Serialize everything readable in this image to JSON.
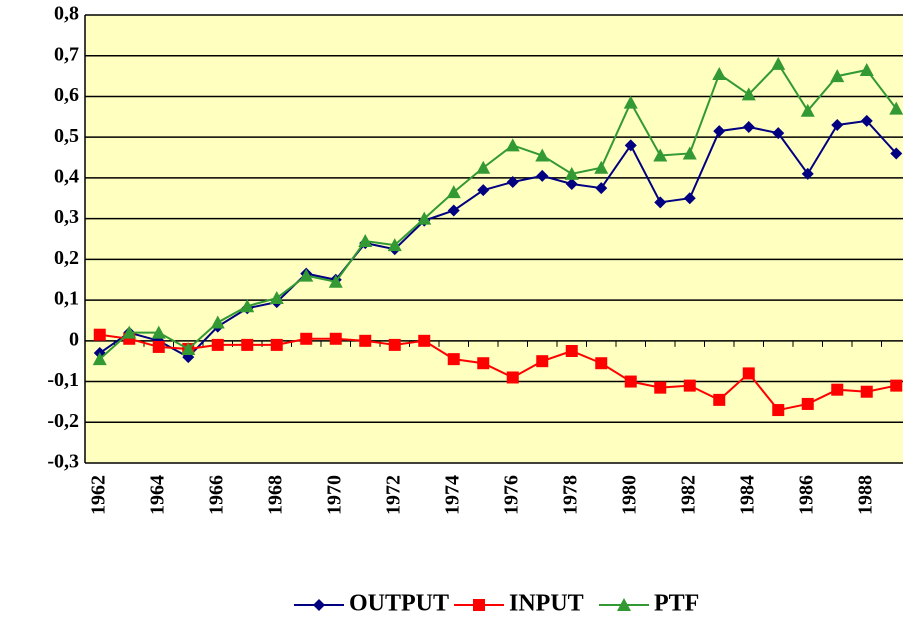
{
  "chart_data": {
    "type": "line",
    "categories": [
      "1962",
      null,
      "1964",
      null,
      "1966",
      null,
      "1968",
      null,
      "1970",
      null,
      "1972",
      null,
      "1974",
      null,
      "1976",
      null,
      "1978",
      null,
      "1980",
      null,
      "1982",
      null,
      "1984",
      null,
      "1986",
      null,
      "1988",
      null
    ],
    "series": [
      {
        "name": "OUTPUT",
        "color": "#000080",
        "marker": "diamond",
        "values": [
          -0.03,
          0.02,
          0.0,
          -0.04,
          0.035,
          0.08,
          0.095,
          0.165,
          0.15,
          0.24,
          0.225,
          0.295,
          0.32,
          0.37,
          0.39,
          0.405,
          0.385,
          0.375,
          0.48,
          0.34,
          0.35,
          0.515,
          0.525,
          0.51,
          0.41,
          0.53,
          0.54,
          0.46
        ]
      },
      {
        "name": "INPUT",
        "color": "#ff0000",
        "marker": "square",
        "values": [
          0.015,
          0.005,
          -0.015,
          -0.02,
          -0.01,
          -0.01,
          -0.01,
          0.005,
          0.005,
          0.0,
          -0.01,
          0.0,
          -0.045,
          -0.055,
          -0.09,
          -0.05,
          -0.025,
          -0.055,
          -0.1,
          -0.115,
          -0.11,
          -0.145,
          -0.08,
          -0.17,
          -0.155,
          -0.12,
          -0.125,
          -0.11
        ]
      },
      {
        "name": "PTF",
        "color": "#339933",
        "marker": "triangle",
        "values": [
          -0.045,
          0.02,
          0.02,
          -0.02,
          0.045,
          0.085,
          0.105,
          0.16,
          0.145,
          0.245,
          0.235,
          0.3,
          0.365,
          0.425,
          0.48,
          0.455,
          0.41,
          0.425,
          0.585,
          0.455,
          0.46,
          0.655,
          0.605,
          0.68,
          0.565,
          0.65,
          0.665,
          0.57
        ]
      }
    ],
    "ylim": [
      -0.3,
      0.8
    ],
    "yticks": [
      {
        "value": -0.3,
        "label": "-0,3"
      },
      {
        "value": -0.2,
        "label": "-0,2"
      },
      {
        "value": -0.1,
        "label": "-0,1"
      },
      0,
      {
        "value": 0.1,
        "label": "0,1"
      },
      {
        "value": 0.2,
        "label": "0,2"
      },
      {
        "value": 0.3,
        "label": "0,3"
      },
      {
        "value": 0.4,
        "label": "0,4"
      },
      {
        "value": 0.5,
        "label": "0,5"
      },
      {
        "value": 0.6,
        "label": "0,6"
      },
      {
        "value": 0.7,
        "label": "0,7"
      },
      {
        "value": 0.8,
        "label": "0,8"
      }
    ],
    "grid": true,
    "legend": "bottom",
    "plot_background": "#ffffc0"
  }
}
